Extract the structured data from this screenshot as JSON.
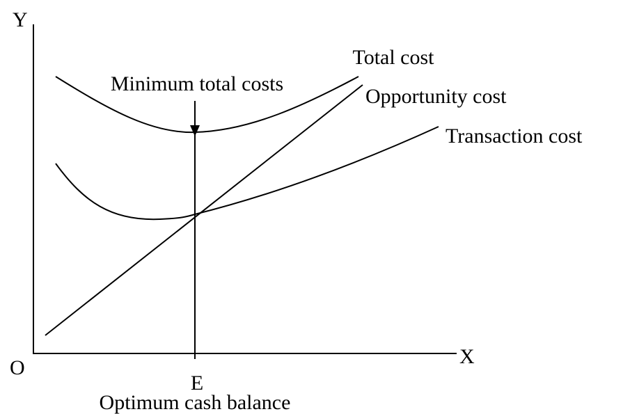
{
  "axes": {
    "y_label": "Y",
    "x_label": "X",
    "origin_label": "O"
  },
  "curves": {
    "total_cost": "Total cost",
    "opportunity_cost": "Opportunity cost",
    "transaction_cost": "Transaction cost"
  },
  "annotations": {
    "minimum": "Minimum total costs",
    "point": "E",
    "x_caption": "Optimum cash balance"
  }
}
